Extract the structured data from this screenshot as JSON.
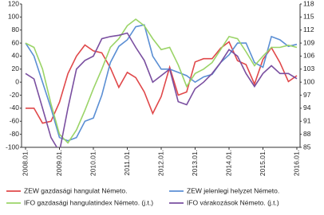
{
  "chart_data": {
    "type": "line",
    "categories": [
      "2008.01.",
      null,
      null,
      null,
      "2009.01.",
      null,
      null,
      null,
      "2010.01.",
      null,
      null,
      null,
      "2011.01.",
      null,
      null,
      null,
      "2012.01.",
      null,
      null,
      null,
      "2013.01.",
      null,
      null,
      null,
      "2014.01.",
      null,
      null,
      null,
      "2015.01.",
      null,
      null,
      null,
      "2016.01."
    ],
    "ylim": [
      -100,
      120
    ],
    "yticks": [
      -100,
      -80,
      -60,
      -40,
      -20,
      0,
      20,
      40,
      60,
      80,
      100,
      120
    ],
    "y2lim": [
      85,
      118
    ],
    "y2ticks": [
      85,
      88,
      91,
      94,
      97,
      100,
      103,
      106,
      109,
      112,
      115,
      118
    ],
    "legend": "bottom",
    "series": [
      {
        "name": "ZEW gazdasági hangulat Németo.",
        "color": "#e0484a",
        "values": [
          -40,
          -40,
          -63,
          -60,
          -31,
          13,
          40,
          57,
          48,
          45,
          22,
          -8,
          15,
          7,
          -15,
          -48,
          -22,
          23,
          -20,
          -15,
          31,
          36,
          36,
          52,
          62,
          33,
          27,
          -3,
          35,
          53,
          30,
          1,
          10
        ]
      },
      {
        "name": "ZEW jelenlegi helyzet Németo.",
        "color": "#5b8fd4",
        "values": [
          60,
          40,
          0,
          -40,
          -85,
          -90,
          -85,
          -60,
          -55,
          -20,
          30,
          55,
          65,
          85,
          88,
          40,
          20,
          20,
          15,
          10,
          0,
          8,
          12,
          30,
          42,
          60,
          60,
          30,
          23,
          70,
          65,
          55,
          58
        ]
      },
      {
        "name": "IFO gazdasági hangulatindex Németo. (j.t.)",
        "color": "#9bd468",
        "axis": "y2",
        "values": [
          109,
          108,
          103,
          95,
          88,
          86,
          89,
          93.5,
          98.5,
          103,
          108,
          110,
          113,
          114.5,
          113,
          110,
          107.5,
          108,
          104,
          99,
          102,
          103,
          104.5,
          107.5,
          110.5,
          110,
          107,
          103.8,
          106,
          108,
          108,
          108.5,
          108
        ]
      },
      {
        "name": "IFO várakozások Németo. (j.t.)",
        "color": "#7a4fa0",
        "axis": "y2",
        "values": [
          102,
          100.75,
          94,
          87.25,
          84,
          94,
          103,
          105,
          106,
          110,
          110.5,
          110.8,
          111.3,
          108,
          105,
          100,
          101.5,
          103,
          95.5,
          94.8,
          98.5,
          100,
          102,
          104.5,
          107.5,
          106,
          102,
          99,
          102,
          103.8,
          102,
          102,
          100.8
        ]
      }
    ]
  }
}
